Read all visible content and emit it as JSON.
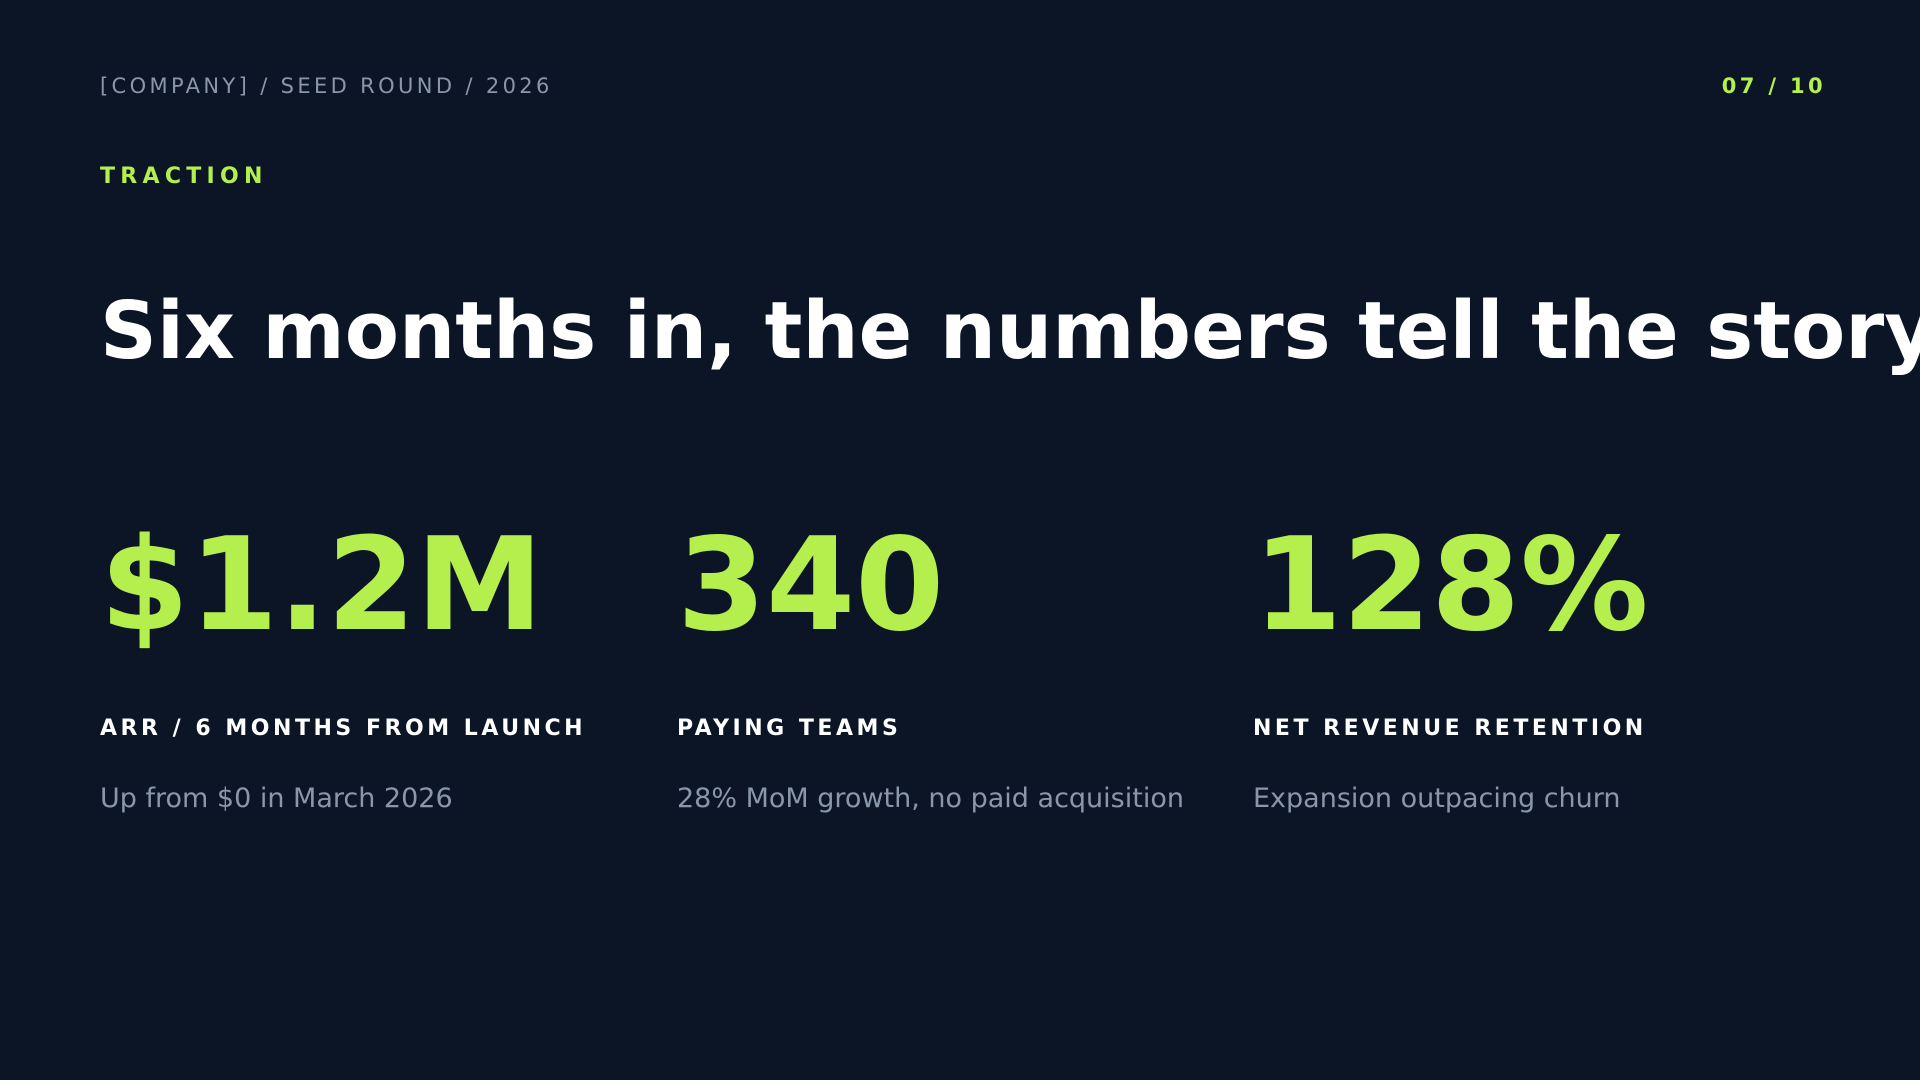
{
  "header": {
    "breadcrumb": "[COMPANY] / SEED ROUND / 2026",
    "page": "07 / 10"
  },
  "section": "TRACTION",
  "headline": "Six months in, the numbers tell the story.",
  "stats": [
    {
      "value": "$1.2M",
      "label": "ARR / 6 MONTHS FROM LAUNCH",
      "note": "Up from $0 in March 2026"
    },
    {
      "value": "340",
      "label": "PAYING TEAMS",
      "note": "28% MoM growth, no paid acquisition"
    },
    {
      "value": "128%",
      "label": "NET REVENUE RETENTION",
      "note": "Expansion outpacing churn"
    }
  ]
}
